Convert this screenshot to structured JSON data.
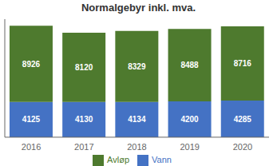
{
  "chart_data": {
    "type": "bar",
    "title": "Normalgebyr inkl. mva.",
    "categories": [
      "2016",
      "2017",
      "2018",
      "2019",
      "2020"
    ],
    "series": [
      {
        "name": "Vann",
        "color": "#4472c4",
        "values": [
          4125,
          4130,
          4134,
          4200,
          4285
        ]
      },
      {
        "name": "Avløp",
        "color": "#4e7a2e",
        "values": [
          8926,
          8120,
          8329,
          8488,
          8716
        ]
      }
    ],
    "stacked": true,
    "ylim": [
      0,
      13834.06
    ],
    "data_labels": true,
    "tick_labels": "x",
    "legend": "bottom",
    "grid": false
  }
}
